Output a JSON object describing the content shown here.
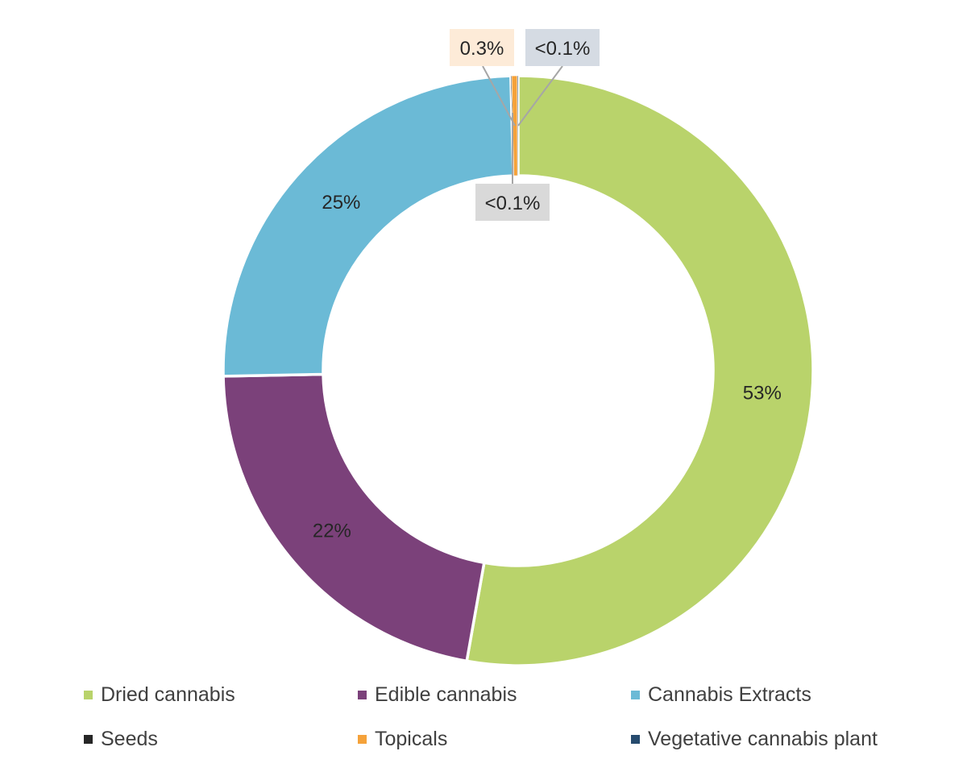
{
  "chart_data": {
    "type": "donut",
    "categories": [
      "Dried cannabis",
      "Edible cannabis",
      "Cannabis Extracts",
      "Seeds",
      "Topicals",
      "Vegetative cannabis plant"
    ],
    "values": [
      53,
      22,
      25,
      0.05,
      0.3,
      0.05
    ],
    "data_labels": [
      "53%",
      "22%",
      "25%",
      "<0.1%",
      "0.3%",
      "<0.1%"
    ],
    "colors": [
      "#b9d36b",
      "#7b417a",
      "#6bbad6",
      "#262626",
      "#f5a23a",
      "#264b6e"
    ],
    "label_box_colors": [
      "",
      "",
      "",
      "#d9d9d9",
      "#fdebd8",
      "#d5dbe3"
    ],
    "start": "top",
    "direction": "clockwise",
    "legend_position": "bottom"
  }
}
